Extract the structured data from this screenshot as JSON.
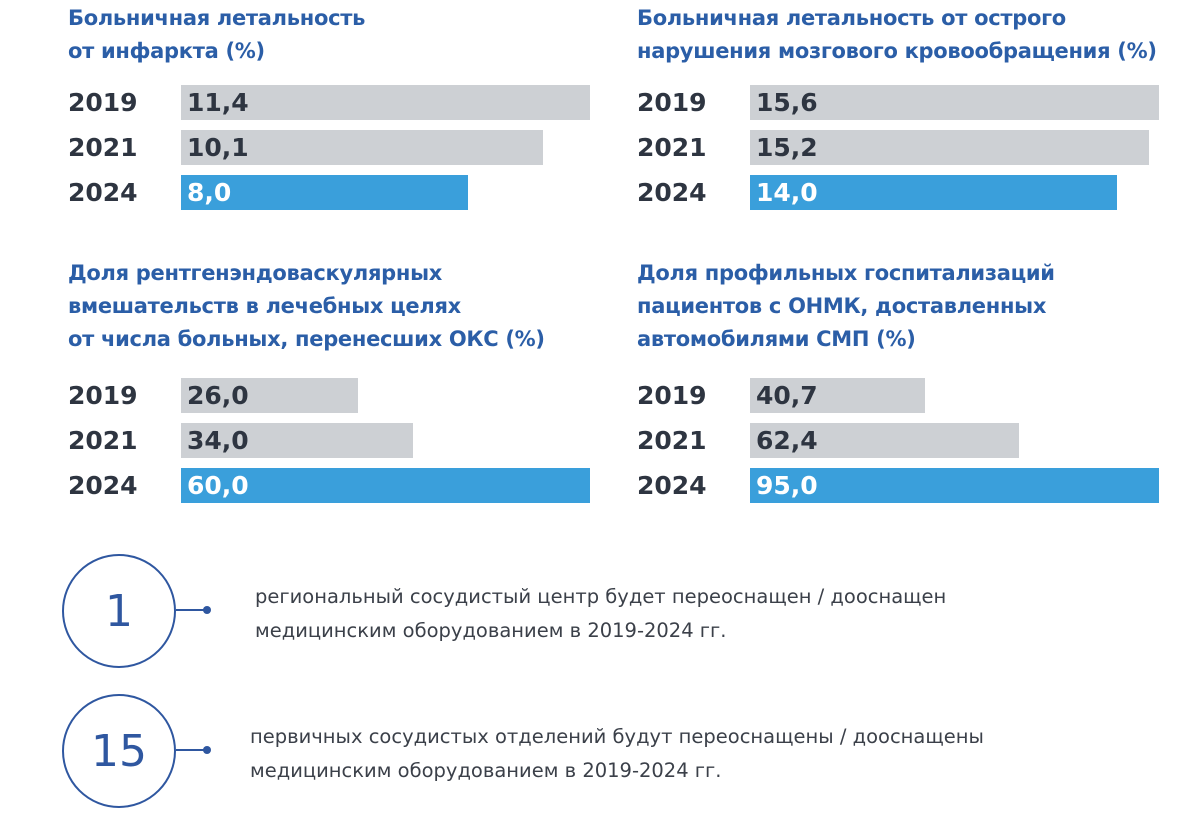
{
  "colors": {
    "title": "#2b5ea7",
    "past_bar": "#cdd0d4",
    "target_bar": "#3a9fdb",
    "year_text": "#2e3541",
    "circle": "#2f57a0"
  },
  "chart_data": [
    {
      "type": "bar",
      "orientation": "horizontal",
      "title_lines": [
        "Больничная летальность",
        "от инфаркта (%)"
      ],
      "categories": [
        "2019",
        "2021",
        "2024"
      ],
      "values": [
        11.4,
        10.1,
        8.0
      ],
      "labels": [
        "11,4",
        "10,1",
        "8,0"
      ]
    },
    {
      "type": "bar",
      "orientation": "horizontal",
      "title_lines": [
        "Больничная летальность от острого",
        "нарушения мозгового кровообращения (%)"
      ],
      "categories": [
        "2019",
        "2021",
        "2024"
      ],
      "values": [
        15.6,
        15.2,
        14.0
      ],
      "labels": [
        "15,6",
        "15,2",
        "14,0"
      ]
    },
    {
      "type": "bar",
      "orientation": "horizontal",
      "title_lines": [
        "Доля рентгенэндоваскулярных",
        "вмешательств в лечебных целях",
        "от числа больных, перенесших ОКС (%)"
      ],
      "categories": [
        "2019",
        "2021",
        "2024"
      ],
      "values": [
        26.0,
        34.0,
        60.0
      ],
      "labels": [
        "26,0",
        "34,0",
        "60,0"
      ]
    },
    {
      "type": "bar",
      "orientation": "horizontal",
      "title_lines": [
        "Доля профильных госпитализаций",
        "пациентов с ОНМК, доставленных",
        "автомобилями СМП (%)"
      ],
      "categories": [
        "2019",
        "2021",
        "2024"
      ],
      "values": [
        40.7,
        62.4,
        95.0
      ],
      "labels": [
        "40,7",
        "62,4",
        "95,0"
      ]
    }
  ],
  "facts": [
    {
      "number": "1",
      "lines": [
        "региональный сосудистый центр будет переоснащен / дооснащен",
        "медицинским оборудованием в 2019-2024 гг."
      ]
    },
    {
      "number": "15",
      "lines": [
        "первичных сосудистых отделений будут переоснащены / дооснащены",
        "медицинским оборудованием в 2019-2024 гг."
      ]
    }
  ]
}
